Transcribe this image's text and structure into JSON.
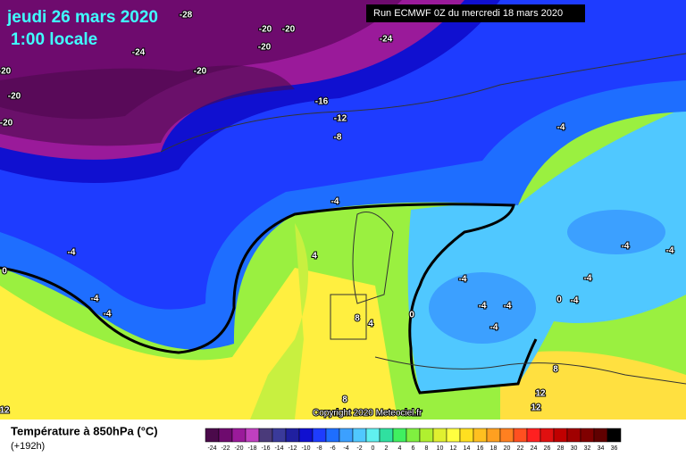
{
  "header": {
    "date": "jeudi 26 mars 2020",
    "time": "1:00 locale",
    "run": "Run ECMWF 0Z du mercredi 18 mars 2020"
  },
  "map_labels": [
    "-28",
    "-20",
    "-20",
    "-24",
    "-24",
    "-20",
    "-20",
    "-20",
    "-20",
    "-20",
    "-16",
    "-12",
    "-8",
    "-4",
    "-4",
    "-4",
    "0",
    "-4",
    "-4",
    "4",
    "-4",
    "-4",
    "-4",
    "-4",
    "0",
    "8",
    "4",
    "0",
    "-4",
    "-4",
    "-4",
    "-4",
    "8",
    "12",
    "12",
    "8",
    "12"
  ],
  "copyright": "Copyright 2020 Meteociel.fr",
  "legend": {
    "title": "Température à 850hPa (°C)",
    "subtitle": "(+192h)"
  },
  "colorbar": {
    "labels": [
      "-24",
      "-22",
      "-20",
      "-18",
      "-16",
      "-14",
      "-12",
      "-10",
      "-8",
      "-6",
      "-4",
      "-2",
      "0",
      "2",
      "4",
      "6",
      "8",
      "10",
      "12",
      "14",
      "16",
      "18",
      "20",
      "22",
      "24",
      "26",
      "28",
      "30",
      "32",
      "34",
      "36"
    ],
    "colors": [
      "#4b0a4b",
      "#6e0b6e",
      "#9a1a9a",
      "#c040c0",
      "#4a3a7a",
      "#3a3a9a",
      "#2020a0",
      "#1010d0",
      "#1e3cff",
      "#1e6eff",
      "#3ca0ff",
      "#50c8ff",
      "#60f0f0",
      "#30e0a0",
      "#40f060",
      "#80f040",
      "#b0f030",
      "#e0f030",
      "#ffff40",
      "#ffe020",
      "#ffc020",
      "#ffa020",
      "#ff8020",
      "#ff5020",
      "#ff2020",
      "#e01010",
      "#c00000",
      "#a00000",
      "#800000",
      "#600000",
      "#000000"
    ]
  }
}
